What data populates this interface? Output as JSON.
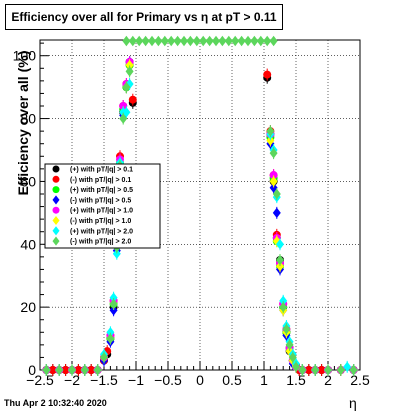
{
  "chart_data": {
    "type": "scatter",
    "title_prefix": "Efficiency over all for Primary vs ",
    "title_eta": "η",
    "title_suffix": " at pT > 0.11",
    "xlabel": "η",
    "ylabel": "Efficiency over all (%)",
    "xlim": [
      -2.5,
      2.5
    ],
    "ylim": [
      0,
      105
    ],
    "x_ticks": [
      -2.5,
      -2,
      -1.5,
      -1,
      -0.5,
      0,
      0.5,
      1,
      1.5,
      2,
      2.5
    ],
    "x_tick_labels": [
      "−2.5",
      "−2",
      "−1.5",
      "−1",
      "−0.5",
      "0",
      "0.5",
      "1",
      "1.5",
      "2",
      "2.5"
    ],
    "y_ticks": [
      0,
      20,
      40,
      60,
      80,
      100
    ],
    "y_tick_labels": [
      "0",
      "20",
      "40",
      "60",
      "80",
      "100"
    ],
    "grid": true,
    "legend_position": "left",
    "series": [
      {
        "name": "(+) with pT/|q| > 0.1",
        "color": "#000000",
        "marker": "circle",
        "x": [
          -2.4,
          -2.3,
          -2.2,
          -2.1,
          -2.0,
          -1.9,
          -1.8,
          -1.7,
          -1.6,
          -1.5,
          -1.45,
          -1.4,
          -1.35,
          -1.3,
          -1.25,
          -1.2,
          -1.15,
          -1.1,
          -1.05,
          1.05,
          1.1,
          1.15,
          1.2,
          1.25,
          1.3,
          1.35,
          1.4,
          1.45,
          1.5,
          1.55,
          1.6,
          1.7,
          1.8,
          1.9,
          2.0,
          2.2,
          2.4
        ],
        "y": [
          0,
          0,
          0,
          0,
          0,
          0,
          0,
          0,
          0,
          3,
          5,
          10,
          20,
          40,
          65,
          82,
          90,
          98,
          85,
          93,
          75,
          60,
          42,
          35,
          20,
          12,
          6,
          3,
          1,
          0,
          0,
          0,
          0,
          0,
          0,
          0,
          0
        ]
      },
      {
        "name": "(-) with pT/|q| > 0.1",
        "color": "#ff0000",
        "marker": "circle",
        "x": [
          -2.4,
          -2.3,
          -2.2,
          -2.1,
          -2.0,
          -1.9,
          -1.8,
          -1.7,
          -1.6,
          -1.5,
          -1.45,
          -1.4,
          -1.35,
          -1.3,
          -1.25,
          -1.2,
          -1.15,
          -1.1,
          -1.05,
          1.05,
          1.1,
          1.15,
          1.2,
          1.25,
          1.3,
          1.35,
          1.4,
          1.45,
          1.5,
          1.55,
          1.6,
          1.7,
          1.8,
          1.9,
          2.0,
          2.2,
          2.4
        ],
        "y": [
          0,
          0,
          0,
          0,
          0,
          0,
          0,
          0,
          0,
          3,
          6,
          11,
          22,
          42,
          68,
          84,
          91,
          97,
          86,
          94,
          76,
          62,
          43,
          34,
          21,
          13,
          7,
          3,
          1,
          0,
          0,
          0,
          0,
          0,
          0,
          0,
          0
        ]
      },
      {
        "name": "(+) with pT/|q| > 0.5",
        "color": "#00ff00",
        "marker": "circle",
        "x": [
          -2.4,
          -2.2,
          -2.0,
          -1.8,
          -1.6,
          -1.5,
          -1.4,
          -1.35,
          -1.3,
          -1.25,
          -1.2,
          -1.15,
          -1.1,
          1.1,
          1.15,
          1.2,
          1.25,
          1.3,
          1.35,
          1.4,
          1.45,
          1.5,
          1.6,
          1.8,
          2.0,
          2.2,
          2.4
        ],
        "y": [
          0,
          0,
          0,
          0,
          0,
          4,
          10,
          21,
          40,
          66,
          83,
          90,
          97,
          74,
          61,
          41,
          33,
          20,
          12,
          7,
          3,
          1,
          0,
          0,
          0,
          0,
          0
        ]
      },
      {
        "name": "(-) with pT/|q| > 0.5",
        "color": "#0000ff",
        "marker": "diamond",
        "x": [
          -2.4,
          -2.2,
          -2.0,
          -1.8,
          -1.6,
          -1.5,
          -1.4,
          -1.35,
          -1.3,
          -1.25,
          -1.2,
          -1.15,
          -1.1,
          1.1,
          1.15,
          1.2,
          1.25,
          1.3,
          1.35,
          1.4,
          1.45,
          1.5,
          1.6,
          1.8,
          2.0,
          2.2,
          2.4
        ],
        "y": [
          0,
          0,
          0,
          0,
          0,
          3,
          9,
          19,
          38,
          64,
          81,
          90,
          98,
          72,
          58,
          50,
          32,
          19,
          11,
          6,
          2,
          1,
          0,
          0,
          0,
          0,
          0
        ]
      },
      {
        "name": "(+) with pT/|q| > 1.0",
        "color": "#ff00ff",
        "marker": "circle",
        "x": [
          -2.4,
          -2.2,
          -2.0,
          -1.8,
          -1.6,
          -1.5,
          -1.4,
          -1.35,
          -1.3,
          -1.25,
          -1.2,
          -1.15,
          -1.1,
          1.1,
          1.15,
          1.2,
          1.25,
          1.3,
          1.35,
          1.4,
          1.45,
          1.5,
          1.6,
          1.8,
          2.0,
          2.2,
          2.4
        ],
        "y": [
          0,
          0,
          0,
          0,
          0,
          4,
          11,
          22,
          41,
          67,
          84,
          91,
          98,
          75,
          62,
          42,
          34,
          21,
          13,
          7,
          3,
          1,
          0,
          0,
          0,
          0,
          0
        ]
      },
      {
        "name": "(-) with pT/|q| > 1.0",
        "color": "#ffff00",
        "marker": "diamond",
        "x": [
          -2.4,
          -2.2,
          -2.0,
          -1.8,
          -1.6,
          -1.5,
          -1.4,
          -1.35,
          -1.3,
          -1.25,
          -1.2,
          -1.15,
          -1.1,
          1.1,
          1.15,
          1.2,
          1.25,
          1.3,
          1.35,
          1.4,
          1.45,
          1.5,
          1.6,
          1.8,
          2.0,
          2.2,
          2.4
        ],
        "y": [
          0,
          0,
          0,
          0,
          0,
          4,
          10,
          21,
          40,
          65,
          82,
          90,
          97,
          73,
          60,
          41,
          33,
          19,
          12,
          6,
          3,
          1,
          0,
          0,
          0,
          0,
          0
        ]
      },
      {
        "name": "(+) with pT/|q| > 2.0",
        "color": "#00ffff",
        "marker": "diamond",
        "x": [
          -2.4,
          -2.2,
          -2.0,
          -1.8,
          -1.6,
          -1.5,
          -1.4,
          -1.35,
          -1.3,
          -1.25,
          -1.2,
          -1.15,
          -1.1,
          1.1,
          1.15,
          1.2,
          1.25,
          1.3,
          1.35,
          1.4,
          1.45,
          1.5,
          1.6,
          1.8,
          2.0,
          2.3,
          2.4
        ],
        "y": [
          0,
          0,
          0,
          0,
          0,
          5,
          12,
          23,
          37,
          66,
          82,
          82,
          91,
          75,
          70,
          55,
          40,
          22,
          14,
          9,
          5,
          2,
          0,
          0,
          0,
          1,
          0
        ]
      },
      {
        "name": "(-) with pT/|q| > 2.0",
        "color": "#5cd65c",
        "marker": "diamond",
        "x": [
          -2.4,
          -2.2,
          -2.0,
          -1.8,
          -1.6,
          -1.5,
          -1.4,
          -1.35,
          -1.3,
          -1.25,
          -1.2,
          -1.15,
          -1.1,
          1.1,
          1.15,
          1.2,
          1.25,
          1.3,
          1.35,
          1.4,
          1.45,
          1.5,
          1.6,
          1.8,
          2.0,
          2.2,
          2.4
        ],
        "y": [
          0,
          0,
          0,
          0,
          0,
          4,
          10,
          21,
          39,
          65,
          80,
          90,
          95,
          76,
          69,
          56,
          35,
          20,
          13,
          8,
          4,
          1,
          0,
          0,
          0,
          0,
          0
        ]
      }
    ],
    "overflow_series": {
      "color": "#5cd65c",
      "x": [
        -1.15,
        -1.05,
        -0.95,
        -0.85,
        -0.75,
        -0.65,
        -0.55,
        -0.45,
        -0.35,
        -0.25,
        -0.15,
        -0.05,
        0.05,
        0.15,
        0.25,
        0.35,
        0.45,
        0.55,
        0.65,
        0.75,
        0.85,
        0.95,
        1.05,
        1.15
      ],
      "y": 105
    }
  },
  "timestamp": "Thu Apr  2 10:32:40 2020"
}
